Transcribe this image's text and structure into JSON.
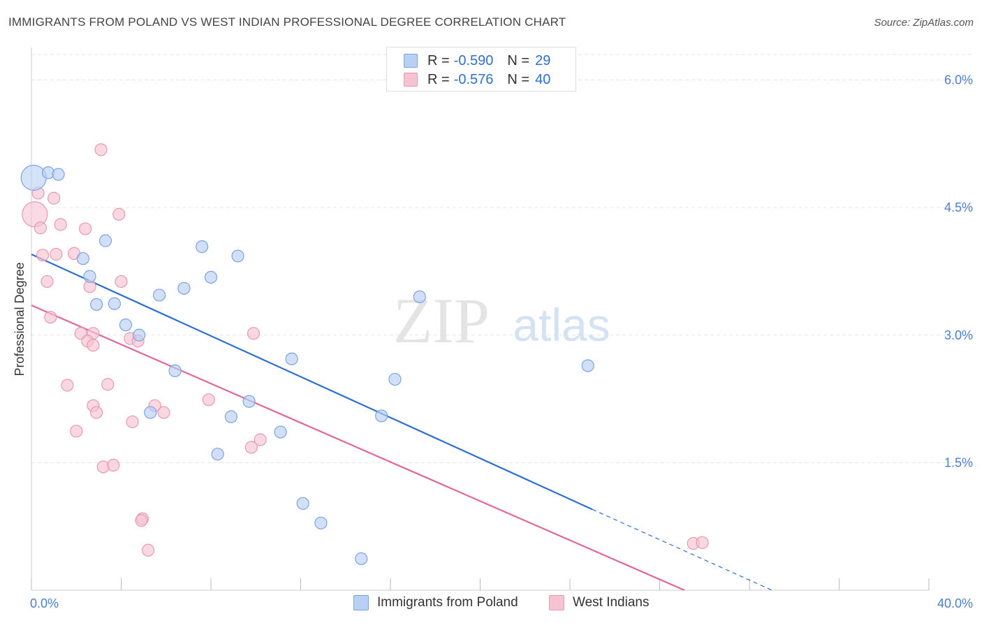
{
  "title": "IMMIGRANTS FROM POLAND VS WEST INDIAN PROFESSIONAL DEGREE CORRELATION CHART",
  "source": "Source: ZipAtlas.com",
  "watermark": {
    "zip": "ZIP",
    "atlas": "atlas"
  },
  "legend": {
    "rows": [
      {
        "r_label": "R =",
        "r_value": "-0.590",
        "n_label": "N =",
        "n_value": "29"
      },
      {
        "r_label": "R =",
        "r_value": "-0.576",
        "n_label": "N =",
        "n_value": "40"
      }
    ]
  },
  "colors": {
    "poland_fill": "#b8d0f4",
    "poland_stroke": "#7aa4e0",
    "poland_line": "#2f6fd0",
    "westindian_fill": "#f7c3d3",
    "westindian_stroke": "#e898b3",
    "westindian_line": "#e0679a",
    "grid": "#e6e6e6",
    "axis_text": "#4a7fd0"
  },
  "chart_data": {
    "type": "scatter",
    "title": "IMMIGRANTS FROM POLAND VS WEST INDIAN PROFESSIONAL DEGREE CORRELATION CHART",
    "xlabel": "",
    "ylabel": "Professional Degree",
    "xlim": [
      0,
      40
    ],
    "ylim": [
      0,
      6.3
    ],
    "x_tick_labels": [
      "0.0%",
      "40.0%"
    ],
    "y_ticks": [
      1.5,
      3.0,
      4.5,
      6.0
    ],
    "y_tick_labels": [
      "1.5%",
      "3.0%",
      "4.5%",
      "6.0%"
    ],
    "grid": true,
    "legend_position": "bottom-center",
    "series": [
      {
        "name": "Immigrants from Poland",
        "points": [
          {
            "x": 0.1,
            "y": 4.85,
            "big": true
          },
          {
            "x": 0.75,
            "y": 4.91
          },
          {
            "x": 1.2,
            "y": 4.89
          },
          {
            "x": 3.3,
            "y": 4.11
          },
          {
            "x": 2.3,
            "y": 3.9
          },
          {
            "x": 7.6,
            "y": 4.04
          },
          {
            "x": 9.2,
            "y": 3.93
          },
          {
            "x": 2.6,
            "y": 3.69
          },
          {
            "x": 8.0,
            "y": 3.68
          },
          {
            "x": 6.8,
            "y": 3.55
          },
          {
            "x": 5.7,
            "y": 3.47
          },
          {
            "x": 2.9,
            "y": 3.36
          },
          {
            "x": 3.7,
            "y": 3.37
          },
          {
            "x": 17.3,
            "y": 3.45
          },
          {
            "x": 4.2,
            "y": 3.12
          },
          {
            "x": 4.8,
            "y": 3.0
          },
          {
            "x": 11.6,
            "y": 2.72
          },
          {
            "x": 6.4,
            "y": 2.58
          },
          {
            "x": 16.2,
            "y": 2.48
          },
          {
            "x": 24.8,
            "y": 2.64
          },
          {
            "x": 9.7,
            "y": 2.22
          },
          {
            "x": 5.3,
            "y": 2.09
          },
          {
            "x": 8.9,
            "y": 2.04
          },
          {
            "x": 15.6,
            "y": 2.05
          },
          {
            "x": 11.1,
            "y": 1.86
          },
          {
            "x": 8.3,
            "y": 1.6
          },
          {
            "x": 12.1,
            "y": 1.02
          },
          {
            "x": 12.9,
            "y": 0.79
          },
          {
            "x": 14.7,
            "y": 0.37
          }
        ],
        "trend": {
          "x": [
            0,
            25
          ],
          "y": [
            3.95,
            0.95
          ]
        },
        "trend_dashed": {
          "x": [
            25,
            33
          ],
          "y": [
            0.95,
            0.0
          ]
        }
      },
      {
        "name": "West Indians",
        "points": [
          {
            "x": 0.15,
            "y": 4.42,
            "big": true
          },
          {
            "x": 3.1,
            "y": 5.18
          },
          {
            "x": 0.3,
            "y": 4.67
          },
          {
            "x": 1.0,
            "y": 4.61
          },
          {
            "x": 3.9,
            "y": 4.42
          },
          {
            "x": 1.3,
            "y": 4.3
          },
          {
            "x": 0.4,
            "y": 4.26
          },
          {
            "x": 2.4,
            "y": 4.25
          },
          {
            "x": 0.5,
            "y": 3.94
          },
          {
            "x": 1.9,
            "y": 3.96
          },
          {
            "x": 1.1,
            "y": 3.95
          },
          {
            "x": 0.7,
            "y": 3.63
          },
          {
            "x": 4.0,
            "y": 3.63
          },
          {
            "x": 2.6,
            "y": 3.57
          },
          {
            "x": 0.85,
            "y": 3.21
          },
          {
            "x": 2.75,
            "y": 3.02
          },
          {
            "x": 2.2,
            "y": 3.02
          },
          {
            "x": 9.9,
            "y": 3.02
          },
          {
            "x": 4.4,
            "y": 2.96
          },
          {
            "x": 4.75,
            "y": 2.93
          },
          {
            "x": 2.5,
            "y": 2.93
          },
          {
            "x": 2.75,
            "y": 2.88
          },
          {
            "x": 1.6,
            "y": 2.41
          },
          {
            "x": 3.4,
            "y": 2.42
          },
          {
            "x": 7.9,
            "y": 2.24
          },
          {
            "x": 2.75,
            "y": 2.17
          },
          {
            "x": 5.5,
            "y": 2.17
          },
          {
            "x": 2.9,
            "y": 2.09
          },
          {
            "x": 5.9,
            "y": 2.09
          },
          {
            "x": 4.5,
            "y": 1.98
          },
          {
            "x": 2.0,
            "y": 1.87
          },
          {
            "x": 10.2,
            "y": 1.77
          },
          {
            "x": 9.8,
            "y": 1.68
          },
          {
            "x": 3.2,
            "y": 1.45
          },
          {
            "x": 3.65,
            "y": 1.47
          },
          {
            "x": 4.95,
            "y": 0.84
          },
          {
            "x": 4.9,
            "y": 0.82
          },
          {
            "x": 5.2,
            "y": 0.47
          },
          {
            "x": 29.5,
            "y": 0.55
          },
          {
            "x": 29.9,
            "y": 0.56
          }
        ],
        "trend": {
          "x": [
            0,
            29.1
          ],
          "y": [
            3.35,
            0.0
          ]
        }
      }
    ]
  }
}
